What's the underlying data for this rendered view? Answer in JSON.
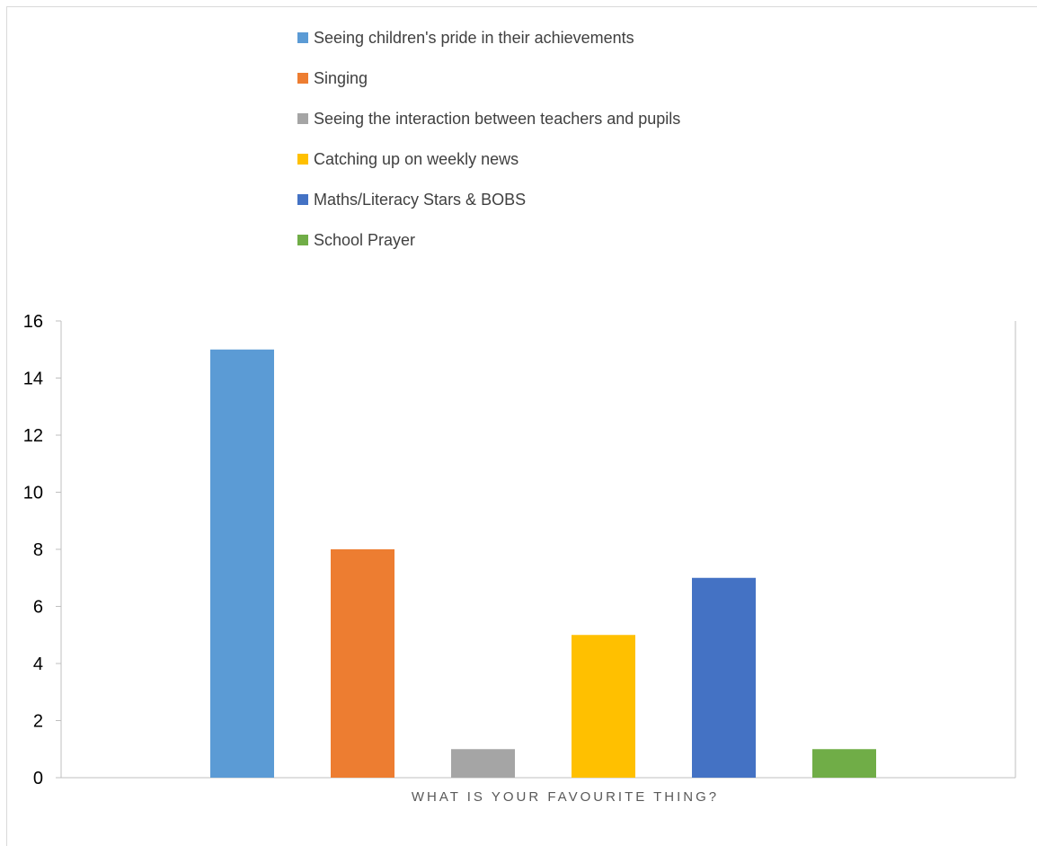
{
  "chart_data": {
    "type": "bar",
    "title": "",
    "xlabel": "WHAT IS YOUR FAVOURITE THING?",
    "ylabel": "",
    "ylim": [
      0,
      16
    ],
    "yticks": [
      0,
      2,
      4,
      6,
      8,
      10,
      12,
      14,
      16
    ],
    "grid": false,
    "legend_position": "top",
    "series": [
      {
        "name": "Seeing children's pride in their achievements",
        "value": 15,
        "color": "#5B9BD5"
      },
      {
        "name": "Singing",
        "value": 8,
        "color": "#ED7D31"
      },
      {
        "name": "Seeing the interaction between teachers and pupils",
        "value": 1,
        "color": "#A5A5A5"
      },
      {
        "name": "Catching up on weekly news",
        "value": 5,
        "color": "#FFC000"
      },
      {
        "name": "Maths/Literacy Stars & BOBS",
        "value": 7,
        "color": "#4472C4"
      },
      {
        "name": "School Prayer",
        "value": 1,
        "color": "#70AD47"
      }
    ]
  }
}
